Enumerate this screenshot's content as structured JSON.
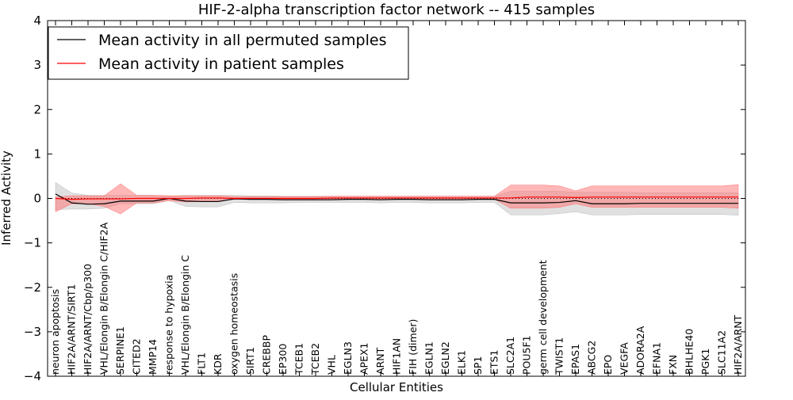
{
  "chart_data": {
    "type": "line",
    "title": "HIF-2-alpha transcription factor network -- 415 samples",
    "xlabel": "Cellular Entities",
    "ylabel": "Inferred Activity",
    "ylim": [
      -4,
      4
    ],
    "yticks": [
      "−4",
      "−3",
      "−2",
      "−1",
      "0",
      "1",
      "2",
      "3",
      "4"
    ],
    "categories": [
      "neuron apoptosis",
      "HIF2A/ARNT/SIRT1",
      "HIF2A/ARNT/Cbp/p300",
      "VHL/Elongin B/Elongin C/HIF2A",
      "SERPINE1",
      "CITED2",
      "MMP14",
      "response to hypoxia",
      "VHL/Elongin B/Elongin C",
      "FLT1",
      "KDR",
      "oxygen homeostasis",
      "SIRT1",
      "CREBBP",
      "EP300",
      "TCEB1",
      "TCEB2",
      "VHL",
      "EGLN3",
      "APEX1",
      "ARNT",
      "HIF1AN",
      "FIH (dimer)",
      "EGLN1",
      "EGLN2",
      "ELK1",
      "SP1",
      "ETS1",
      "SLC2A1",
      "POU5F1",
      "germ cell development",
      "TWIST1",
      "EPAS1",
      "ABCG2",
      "EPO",
      "VEGFA",
      "ADORA2A",
      "EFNA1",
      "FXN",
      "BHLHE40",
      "PGK1",
      "SLC11A2",
      "HIF2A/ARNT"
    ],
    "legend": {
      "position": "top-left",
      "entries": [
        {
          "label": "Mean activity in all permuted samples",
          "color": "#000000"
        },
        {
          "label": "Mean activity in patient samples",
          "color": "#ff0000"
        }
      ]
    },
    "series": [
      {
        "name": "Mean activity in all permuted samples",
        "color": "#000000",
        "band_color": "#bbbbbb",
        "values": [
          0.1,
          -0.1,
          -0.13,
          -0.12,
          -0.06,
          -0.06,
          -0.06,
          0.0,
          -0.06,
          -0.07,
          -0.07,
          -0.01,
          -0.02,
          -0.02,
          -0.03,
          -0.03,
          -0.03,
          -0.03,
          -0.02,
          -0.02,
          -0.03,
          -0.02,
          -0.02,
          -0.03,
          -0.03,
          -0.03,
          -0.02,
          -0.02,
          -0.1,
          -0.1,
          -0.1,
          -0.09,
          -0.05,
          -0.12,
          -0.12,
          -0.12,
          -0.11,
          -0.11,
          -0.11,
          -0.11,
          -0.11,
          -0.11,
          -0.11
        ],
        "lower": [
          -0.25,
          -0.24,
          -0.24,
          -0.22,
          -0.12,
          -0.12,
          -0.12,
          -0.05,
          -0.18,
          -0.19,
          -0.19,
          -0.09,
          -0.1,
          -0.1,
          -0.1,
          -0.09,
          -0.09,
          -0.09,
          -0.09,
          -0.09,
          -0.1,
          -0.09,
          -0.09,
          -0.1,
          -0.1,
          -0.1,
          -0.09,
          -0.09,
          -0.37,
          -0.37,
          -0.37,
          -0.34,
          -0.3,
          -0.37,
          -0.37,
          -0.37,
          -0.36,
          -0.36,
          -0.36,
          -0.36,
          -0.36,
          -0.36,
          -0.38
        ],
        "upper": [
          0.36,
          0.12,
          0.07,
          0.07,
          0.07,
          0.07,
          0.07,
          0.05,
          0.07,
          0.07,
          0.07,
          0.07,
          0.06,
          0.06,
          0.05,
          0.05,
          0.05,
          0.05,
          0.05,
          0.05,
          0.05,
          0.05,
          0.05,
          0.05,
          0.05,
          0.05,
          0.05,
          0.05,
          0.16,
          0.16,
          0.16,
          0.16,
          0.14,
          0.14,
          0.14,
          0.14,
          0.13,
          0.13,
          0.13,
          0.13,
          0.13,
          0.13,
          0.13
        ]
      },
      {
        "name": "Mean activity in patient samples",
        "color": "#ff0000",
        "band_color": "#ff7070",
        "values": [
          0.0,
          -0.02,
          -0.01,
          -0.01,
          -0.01,
          0.0,
          0.0,
          0.0,
          0.0,
          0.01,
          0.01,
          0.0,
          0.0,
          0.0,
          0.0,
          0.0,
          0.0,
          0.01,
          0.01,
          0.01,
          0.01,
          0.01,
          0.01,
          0.01,
          0.01,
          0.01,
          0.01,
          0.01,
          0.01,
          0.03,
          0.03,
          0.03,
          0.02,
          0.03,
          0.03,
          0.03,
          0.03,
          0.03,
          0.03,
          0.03,
          0.03,
          0.03,
          0.03
        ],
        "lower": [
          -0.3,
          -0.12,
          -0.12,
          -0.18,
          -0.35,
          -0.1,
          -0.1,
          -0.05,
          -0.08,
          -0.07,
          -0.07,
          -0.02,
          -0.02,
          -0.02,
          -0.02,
          -0.02,
          -0.02,
          -0.02,
          -0.02,
          -0.02,
          -0.02,
          -0.02,
          -0.02,
          -0.02,
          -0.02,
          -0.02,
          -0.02,
          -0.02,
          -0.22,
          -0.22,
          -0.22,
          -0.2,
          -0.12,
          -0.2,
          -0.2,
          -0.2,
          -0.2,
          -0.2,
          -0.2,
          -0.2,
          -0.2,
          -0.2,
          -0.22
        ],
        "upper": [
          0.03,
          0.06,
          0.06,
          0.06,
          0.33,
          0.07,
          0.07,
          0.06,
          0.06,
          0.06,
          0.06,
          0.04,
          0.04,
          0.04,
          0.04,
          0.04,
          0.04,
          0.05,
          0.05,
          0.05,
          0.05,
          0.05,
          0.05,
          0.05,
          0.05,
          0.05,
          0.05,
          0.05,
          0.3,
          0.3,
          0.3,
          0.28,
          0.17,
          0.28,
          0.28,
          0.28,
          0.28,
          0.28,
          0.28,
          0.28,
          0.28,
          0.28,
          0.31
        ]
      }
    ]
  }
}
